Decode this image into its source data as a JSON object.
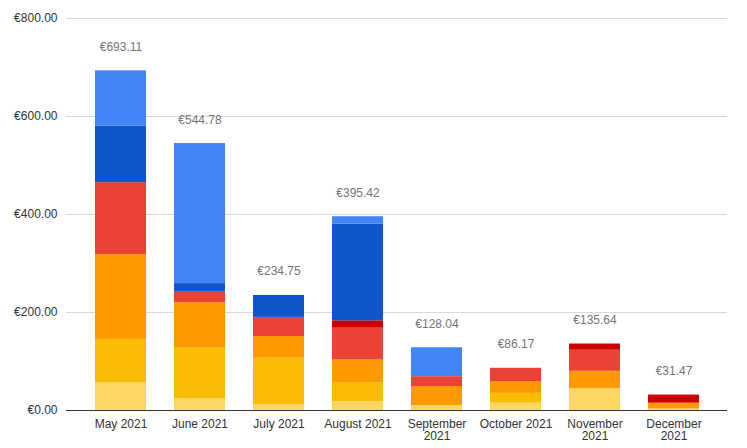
{
  "chart_data": {
    "type": "bar",
    "stacked": true,
    "grid": true,
    "categories": [
      "May 2021",
      "June 2021",
      "July 2021",
      "August 2021",
      "September 2021",
      "October 2021",
      "November 2021",
      "December 2021"
    ],
    "series": [
      {
        "color": "#fdd663",
        "values": [
          57,
          24,
          12,
          18,
          10,
          15,
          45,
          3
        ]
      },
      {
        "color": "#fbbc04",
        "values": [
          88,
          103,
          96,
          39,
          0,
          20,
          0,
          0
        ]
      },
      {
        "color": "#ff9900",
        "values": [
          173,
          93,
          43,
          46,
          39,
          24,
          35,
          12
        ]
      },
      {
        "color": "#ea4335",
        "values": [
          147,
          23,
          39,
          65,
          20,
          27.17,
          43,
          0
        ]
      },
      {
        "color": "#cc0000",
        "values": [
          0,
          0,
          0,
          15,
          0,
          0,
          12.64,
          16.47
        ]
      },
      {
        "color": "#1155cc",
        "values": [
          115,
          16,
          44.75,
          197,
          0,
          0,
          0,
          0
        ]
      },
      {
        "color": "#4285f4",
        "values": [
          113.11,
          285.78,
          0,
          15.42,
          59.04,
          0,
          0,
          0
        ]
      }
    ],
    "totals": [
      693.11,
      544.78,
      234.75,
      395.42,
      128.04,
      86.17,
      135.64,
      31.47
    ],
    "total_labels": [
      "€693.11",
      "€544.78",
      "€234.75",
      "€395.42",
      "€128.04",
      "€86.17",
      "€135.64",
      "€31.47"
    ],
    "ylim": [
      0,
      800
    ],
    "yticks": [
      {
        "value": 0,
        "label": "€0.00"
      },
      {
        "value": 200,
        "label": "€200.00"
      },
      {
        "value": 400,
        "label": "€400.00"
      },
      {
        "value": 600,
        "label": "€600.00"
      },
      {
        "value": 800,
        "label": "€800.00"
      }
    ]
  }
}
